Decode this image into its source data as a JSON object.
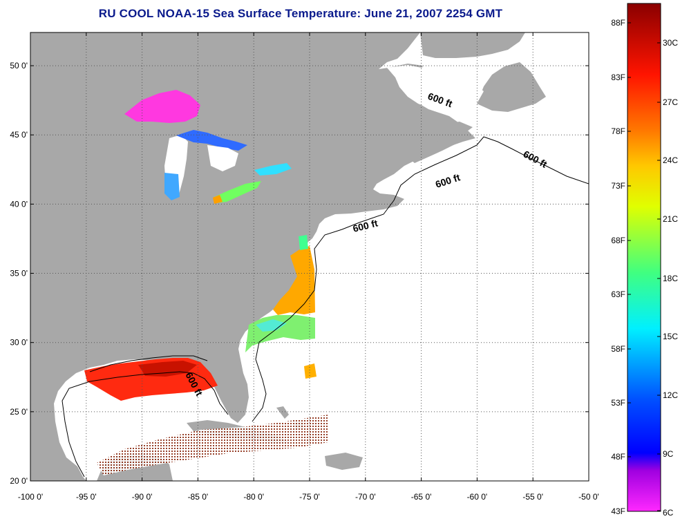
{
  "title": "RU COOL  NOAA-15  Sea Surface Temperature:  June 21, 2007 2254 GMT",
  "lon_ticks": [
    "-100 0'",
    "-95 0'",
    "-90 0'",
    "-85 0'",
    "-80 0'",
    "-75 0'",
    "-70 0'",
    "-65 0'",
    "-60 0'",
    "-55 0'",
    "-50 0'"
  ],
  "lat_ticks": [
    "50 0'",
    "45 0'",
    "40 0'",
    "35 0'",
    "30 0'",
    "25 0'",
    "20 0'"
  ],
  "contour_labels": [
    "600 ft",
    "600 ft",
    "600 ft",
    "600 ft",
    "600 ft"
  ],
  "colorbar": {
    "fahrenheit": [
      "88F",
      "83F",
      "78F",
      "73F",
      "68F",
      "63F",
      "58F",
      "53F",
      "48F",
      "43F"
    ],
    "celsius": [
      "30C",
      "27C",
      "24C",
      "21C",
      "18C",
      "15C",
      "12C",
      "9C",
      "6C"
    ]
  },
  "colors": {
    "land": "#a8a8a8",
    "water": "#ffffff",
    "title": "#0a1a8c",
    "grid": "#555555"
  }
}
